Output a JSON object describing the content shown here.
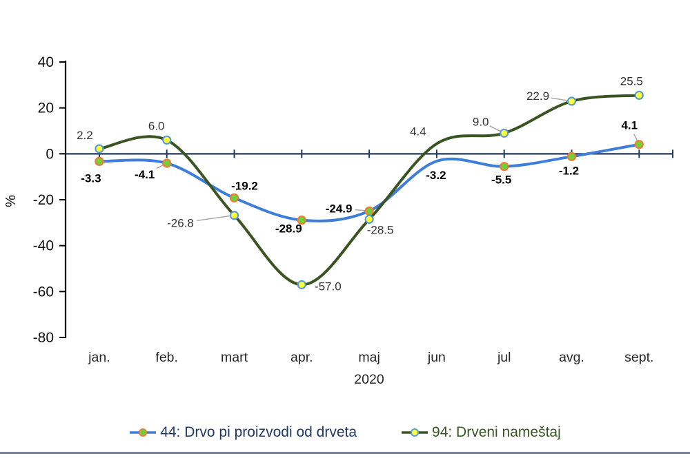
{
  "chart_data": {
    "type": "line",
    "title": "",
    "ylabel": "%",
    "year_label": "2020",
    "categories": [
      "jan.",
      "feb.",
      "mart",
      "apr.",
      "maj",
      "jun",
      "jul",
      "avg.",
      "sept."
    ],
    "ylim": [
      -80,
      40
    ],
    "yticks": [
      "40",
      "20",
      "0",
      "-20",
      "-40",
      "-60",
      "-80"
    ],
    "grid": "off",
    "legend_position": "bottom",
    "axis_color": "#000000",
    "zero_line_color": "#1F3864",
    "leader_color": "#A6A6A6",
    "series": [
      {
        "id": "44",
        "name": "44: Drvo pi proizvodi od drveta",
        "color": "#3E7DD8",
        "marker_fill": "#6FD23A",
        "marker_stroke": "#ED7D31",
        "legend_text_color": "#1F3864",
        "label_bold": true,
        "values": [
          -3.3,
          -4.1,
          -19.2,
          -28.9,
          -24.9,
          -3.2,
          -5.5,
          -1.2,
          4.1
        ],
        "labels": [
          "-3.3",
          "-4.1",
          "-19.2",
          "-28.9",
          "-24.9",
          "-3.2",
          "-5.5",
          "-1.2",
          "4.1"
        ],
        "label_offsets": [
          [
            -12,
            24
          ],
          [
            -32,
            16
          ],
          [
            15,
            -18
          ],
          [
            -19,
            12
          ],
          [
            -44,
            -4
          ],
          [
            -1,
            20
          ],
          [
            -4,
            19
          ],
          [
            -4,
            20
          ],
          [
            -14,
            -28
          ]
        ],
        "leaders": [
          false,
          true,
          false,
          false,
          true,
          false,
          false,
          false,
          true
        ],
        "marker_at": [
          true,
          true,
          true,
          true,
          true,
          false,
          true,
          true,
          true
        ]
      },
      {
        "id": "94",
        "name": "94: Drveni nameštaj",
        "color": "#3A5522",
        "marker_fill": "#FFFF3B",
        "marker_stroke": "#5B9BD5",
        "legend_text_color": "#375623",
        "label_bold": false,
        "values": [
          2.2,
          6.0,
          -26.8,
          -57.0,
          -28.5,
          4.4,
          9.0,
          22.9,
          25.5
        ],
        "labels": [
          "2.2",
          "6.0",
          "-26.8",
          "-57.0",
          "-28.5",
          "4.4",
          "9.0",
          "22.9",
          "25.5"
        ],
        "label_offsets": [
          [
            -21,
            -20
          ],
          [
            -15,
            -21
          ],
          [
            -78,
            11
          ],
          [
            38,
            2
          ],
          [
            16,
            15
          ],
          [
            -27,
            -18
          ],
          [
            -34,
            -17
          ],
          [
            -49,
            -8
          ],
          [
            -11,
            -21
          ]
        ],
        "leaders": [
          false,
          false,
          true,
          false,
          false,
          false,
          true,
          true,
          false
        ],
        "marker_at": [
          true,
          true,
          true,
          true,
          true,
          false,
          true,
          true,
          true
        ]
      }
    ],
    "bottom_rule_color": "#75829A"
  }
}
